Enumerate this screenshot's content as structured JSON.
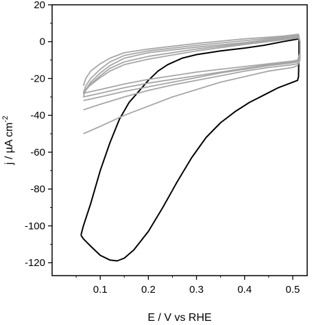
{
  "chart_data": {
    "type": "line",
    "title": "",
    "xlabel": "E / V vs RHE",
    "ylabel_main": "j / µA cm",
    "ylabel_sup": "-2",
    "xlim": [
      0.0,
      0.53
    ],
    "ylim": [
      -127,
      20
    ],
    "x_ticks": [
      0.1,
      0.2,
      0.3,
      0.4,
      0.5
    ],
    "x_tick_labels": [
      "0.1",
      "0.2",
      "0.3",
      "0.4",
      "0.5"
    ],
    "y_ticks": [
      20,
      0,
      -20,
      -40,
      -60,
      -80,
      -100,
      -120
    ],
    "y_tick_labels": [
      "20",
      "0",
      "-20",
      "-40",
      "-60",
      "-80",
      "-100",
      "-120"
    ],
    "grid": false,
    "legend": "none",
    "series": [
      {
        "color": "#000000",
        "points": [
          [
            0.06,
            -105
          ],
          [
            0.065,
            -107
          ],
          [
            0.08,
            -111
          ],
          [
            0.1,
            -116
          ],
          [
            0.12,
            -118.5
          ],
          [
            0.135,
            -119
          ],
          [
            0.15,
            -117.5
          ],
          [
            0.17,
            -113
          ],
          [
            0.2,
            -103
          ],
          [
            0.23,
            -90
          ],
          [
            0.26,
            -76
          ],
          [
            0.29,
            -63
          ],
          [
            0.32,
            -52
          ],
          [
            0.35,
            -44
          ],
          [
            0.38,
            -38
          ],
          [
            0.41,
            -33
          ],
          [
            0.44,
            -29
          ],
          [
            0.47,
            -25
          ],
          [
            0.5,
            -22
          ],
          [
            0.51,
            -21
          ],
          [
            0.512,
            -19
          ],
          [
            0.513,
            -5
          ],
          [
            0.513,
            1.5
          ],
          [
            0.48,
            0
          ],
          [
            0.44,
            -2
          ],
          [
            0.4,
            -3.5
          ],
          [
            0.35,
            -5
          ],
          [
            0.3,
            -7
          ],
          [
            0.27,
            -9
          ],
          [
            0.24,
            -12.5
          ],
          [
            0.22,
            -16
          ],
          [
            0.2,
            -21
          ],
          [
            0.18,
            -27
          ],
          [
            0.16,
            -33
          ],
          [
            0.14,
            -42
          ],
          [
            0.12,
            -55
          ],
          [
            0.1,
            -70
          ],
          [
            0.08,
            -88
          ],
          [
            0.065,
            -100
          ],
          [
            0.06,
            -105
          ]
        ]
      },
      {
        "color": "#a6a6a6",
        "points": [
          [
            0.065,
            -50
          ],
          [
            0.1,
            -46
          ],
          [
            0.15,
            -40
          ],
          [
            0.2,
            -35
          ],
          [
            0.25,
            -30
          ],
          [
            0.3,
            -26
          ],
          [
            0.35,
            -22
          ],
          [
            0.4,
            -19
          ],
          [
            0.45,
            -16
          ],
          [
            0.5,
            -14
          ],
          [
            0.51,
            -13
          ],
          [
            0.515,
            -10
          ],
          [
            0.515,
            0
          ],
          [
            0.512,
            4
          ],
          [
            0.48,
            3
          ],
          [
            0.4,
            1.5
          ],
          [
            0.3,
            -1
          ],
          [
            0.2,
            -4
          ],
          [
            0.15,
            -6
          ],
          [
            0.12,
            -9
          ],
          [
            0.1,
            -12
          ],
          [
            0.08,
            -16
          ],
          [
            0.07,
            -20
          ],
          [
            0.065,
            -24
          ]
        ]
      },
      {
        "color": "#a6a6a6",
        "points": [
          [
            0.065,
            -37
          ],
          [
            0.1,
            -34
          ],
          [
            0.15,
            -30
          ],
          [
            0.2,
            -26.5
          ],
          [
            0.25,
            -23.5
          ],
          [
            0.3,
            -21
          ],
          [
            0.35,
            -18.5
          ],
          [
            0.4,
            -16
          ],
          [
            0.45,
            -14
          ],
          [
            0.5,
            -12.5
          ],
          [
            0.51,
            -12
          ],
          [
            0.515,
            -9
          ],
          [
            0.515,
            0
          ],
          [
            0.512,
            3.5
          ],
          [
            0.48,
            2.5
          ],
          [
            0.4,
            0.5
          ],
          [
            0.3,
            -2
          ],
          [
            0.2,
            -5
          ],
          [
            0.15,
            -7.5
          ],
          [
            0.12,
            -11
          ],
          [
            0.1,
            -15
          ],
          [
            0.08,
            -20
          ],
          [
            0.07,
            -24
          ],
          [
            0.065,
            -28
          ]
        ]
      },
      {
        "color": "#a6a6a6",
        "points": [
          [
            0.065,
            -32
          ],
          [
            0.1,
            -30
          ],
          [
            0.15,
            -27
          ],
          [
            0.2,
            -24.5
          ],
          [
            0.25,
            -22
          ],
          [
            0.3,
            -19.5
          ],
          [
            0.35,
            -17
          ],
          [
            0.4,
            -15
          ],
          [
            0.45,
            -13
          ],
          [
            0.5,
            -11.5
          ],
          [
            0.51,
            -11
          ],
          [
            0.515,
            -8
          ],
          [
            0.515,
            0
          ],
          [
            0.512,
            3
          ],
          [
            0.48,
            2
          ],
          [
            0.4,
            -0.5
          ],
          [
            0.3,
            -3
          ],
          [
            0.2,
            -6
          ],
          [
            0.15,
            -9
          ],
          [
            0.12,
            -13
          ],
          [
            0.1,
            -17
          ],
          [
            0.08,
            -22
          ],
          [
            0.07,
            -26
          ],
          [
            0.065,
            -30
          ]
        ]
      },
      {
        "color": "#a6a6a6",
        "points": [
          [
            0.065,
            -30
          ],
          [
            0.1,
            -28
          ],
          [
            0.15,
            -25
          ],
          [
            0.2,
            -22.5
          ],
          [
            0.25,
            -20.5
          ],
          [
            0.3,
            -18.5
          ],
          [
            0.35,
            -16.5
          ],
          [
            0.4,
            -14.5
          ],
          [
            0.45,
            -12.5
          ],
          [
            0.5,
            -11
          ],
          [
            0.51,
            -10.5
          ],
          [
            0.515,
            -7
          ],
          [
            0.515,
            0
          ],
          [
            0.512,
            2.5
          ],
          [
            0.48,
            1.5
          ],
          [
            0.4,
            -1
          ],
          [
            0.3,
            -4
          ],
          [
            0.2,
            -8
          ],
          [
            0.15,
            -11
          ],
          [
            0.12,
            -14.5
          ],
          [
            0.1,
            -18.5
          ],
          [
            0.08,
            -23
          ],
          [
            0.07,
            -26.5
          ],
          [
            0.065,
            -28.5
          ]
        ]
      },
      {
        "color": "#a6a6a6",
        "points": [
          [
            0.065,
            -28
          ],
          [
            0.1,
            -26
          ],
          [
            0.15,
            -23
          ],
          [
            0.2,
            -20.5
          ],
          [
            0.25,
            -18.5
          ],
          [
            0.3,
            -16.5
          ],
          [
            0.35,
            -15
          ],
          [
            0.4,
            -13.5
          ],
          [
            0.45,
            -12
          ],
          [
            0.5,
            -10.5
          ],
          [
            0.51,
            -10
          ],
          [
            0.515,
            -6
          ],
          [
            0.515,
            0
          ],
          [
            0.512,
            2
          ],
          [
            0.48,
            1
          ],
          [
            0.4,
            -1.5
          ],
          [
            0.3,
            -5
          ],
          [
            0.2,
            -9.5
          ],
          [
            0.15,
            -12.5
          ],
          [
            0.12,
            -16
          ],
          [
            0.1,
            -19.5
          ],
          [
            0.08,
            -23.5
          ],
          [
            0.07,
            -26
          ],
          [
            0.065,
            -27
          ]
        ]
      }
    ]
  }
}
